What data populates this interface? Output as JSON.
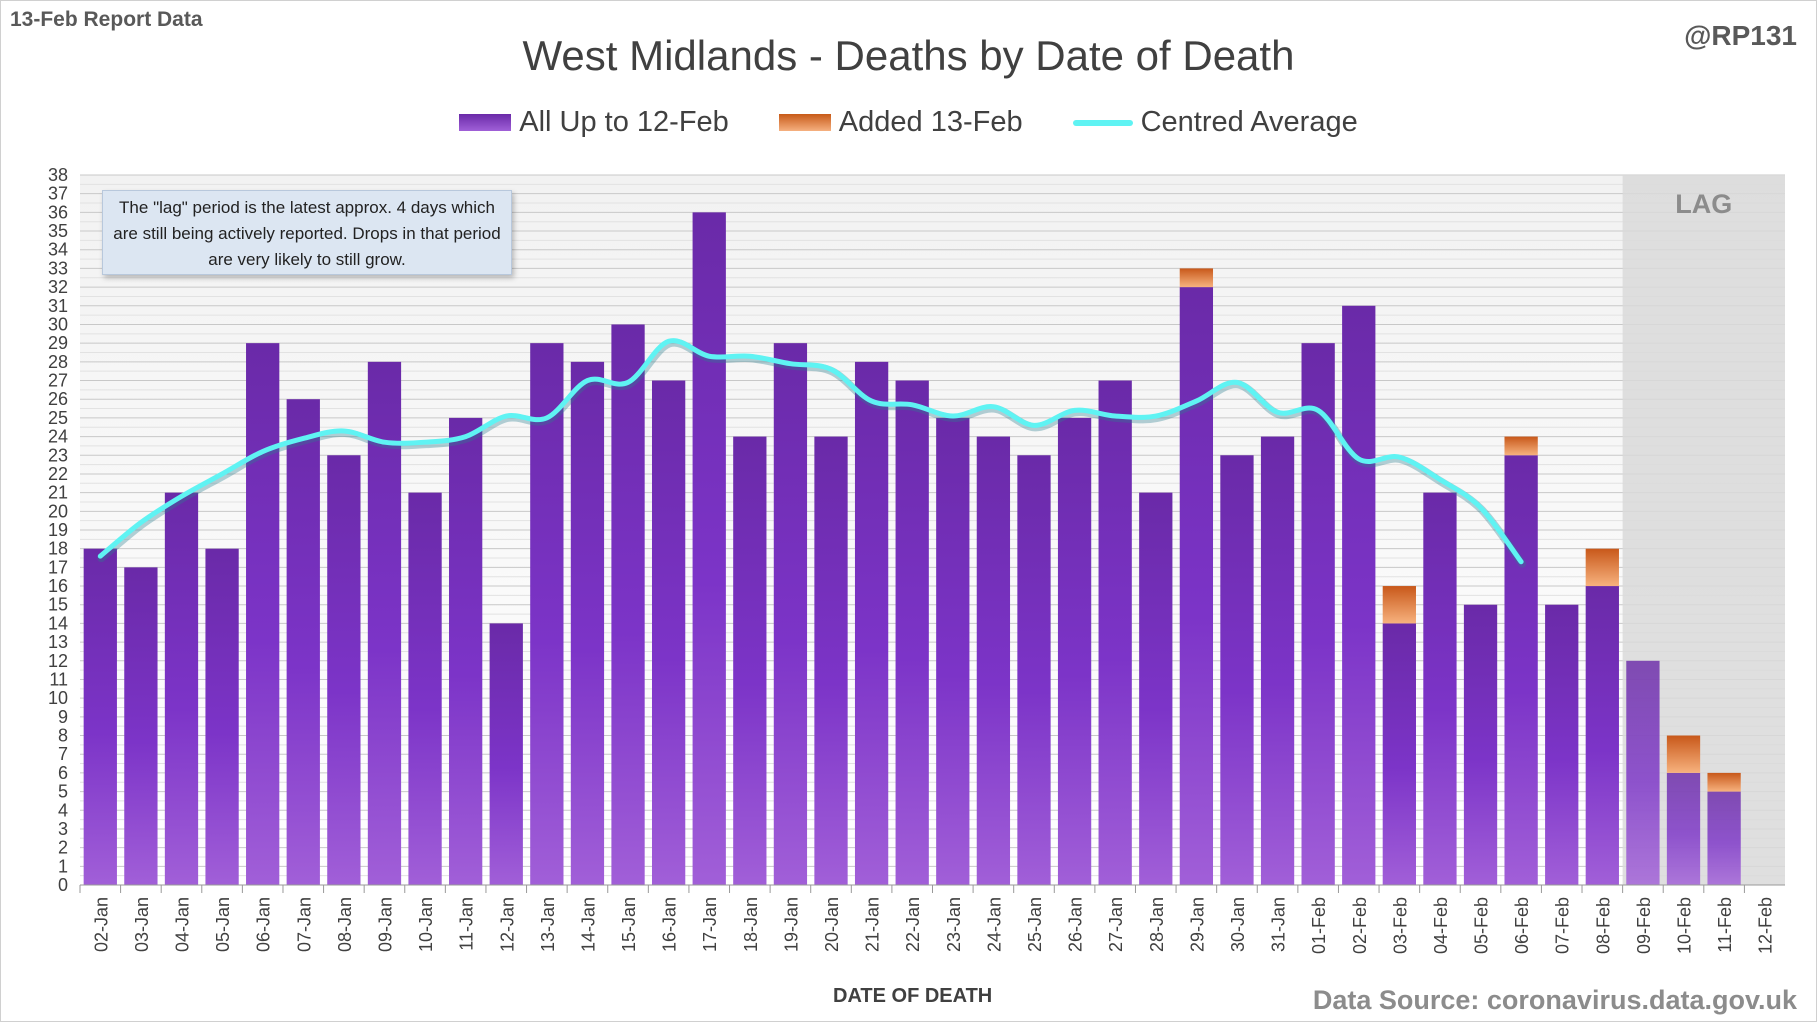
{
  "header": {
    "report_label": "13-Feb Report Data",
    "handle": "@RP131",
    "source": "Data Source: coronavirus.data.gov.uk"
  },
  "note": "The \"lag\" period is the latest approx. 4 days which are still being actively reported.  Drops in that period are very likely to still grow.",
  "colors": {
    "base": "#7a34c2",
    "added": "#e27a30",
    "average": "#5ff3f3",
    "lag_shade": "#d9d9d9"
  },
  "chart_data": {
    "type": "bar",
    "title": "West Midlands - Deaths by Date of Death",
    "xlabel": "DATE OF DEATH",
    "ylabel": "",
    "ylim": [
      0,
      38
    ],
    "yticks": [
      0,
      1,
      2,
      3,
      4,
      5,
      6,
      7,
      8,
      9,
      10,
      11,
      12,
      13,
      14,
      15,
      16,
      17,
      18,
      19,
      20,
      21,
      22,
      23,
      24,
      25,
      26,
      27,
      28,
      29,
      30,
      31,
      32,
      33,
      34,
      35,
      36,
      37,
      38
    ],
    "grid": true,
    "legend_position": "top",
    "stacked": true,
    "categories": [
      "02-Jan",
      "03-Jan",
      "04-Jan",
      "05-Jan",
      "06-Jan",
      "07-Jan",
      "08-Jan",
      "09-Jan",
      "10-Jan",
      "11-Jan",
      "12-Jan",
      "13-Jan",
      "14-Jan",
      "15-Jan",
      "16-Jan",
      "17-Jan",
      "18-Jan",
      "19-Jan",
      "20-Jan",
      "21-Jan",
      "22-Jan",
      "23-Jan",
      "24-Jan",
      "25-Jan",
      "26-Jan",
      "27-Jan",
      "28-Jan",
      "29-Jan",
      "30-Jan",
      "31-Jan",
      "01-Feb",
      "02-Feb",
      "03-Feb",
      "04-Feb",
      "05-Feb",
      "06-Feb",
      "07-Feb",
      "08-Feb",
      "09-Feb",
      "10-Feb",
      "11-Feb",
      "12-Feb"
    ],
    "series": [
      {
        "name": "All Up to 12-Feb",
        "kind": "bar",
        "values": [
          18,
          17,
          21,
          18,
          29,
          26,
          23,
          28,
          21,
          25,
          14,
          29,
          28,
          30,
          27,
          36,
          24,
          29,
          24,
          28,
          27,
          25,
          24,
          23,
          25,
          27,
          21,
          32,
          23,
          24,
          29,
          31,
          14,
          21,
          15,
          23,
          15,
          16,
          12,
          6,
          5,
          0
        ]
      },
      {
        "name": "Added 13-Feb",
        "kind": "bar",
        "values": [
          0,
          0,
          0,
          0,
          0,
          0,
          0,
          0,
          0,
          0,
          0,
          0,
          0,
          0,
          0,
          0,
          0,
          0,
          0,
          0,
          0,
          0,
          0,
          0,
          0,
          0,
          0,
          1,
          0,
          0,
          0,
          0,
          2,
          0,
          0,
          1,
          0,
          2,
          0,
          2,
          1,
          0
        ]
      },
      {
        "name": "Centred Average",
        "kind": "line",
        "values": [
          17.6,
          19.4,
          20.8,
          22.0,
          23.2,
          23.9,
          24.3,
          23.7,
          23.7,
          24.0,
          25.1,
          25.0,
          27.0,
          26.9,
          29.1,
          28.3,
          28.3,
          27.9,
          27.6,
          25.9,
          25.7,
          25.1,
          25.6,
          24.6,
          25.4,
          25.1,
          25.1,
          25.9,
          26.9,
          25.3,
          25.4,
          22.8,
          22.9,
          21.7,
          20.2,
          17.3,
          null,
          null,
          null,
          null,
          null,
          null
        ]
      }
    ],
    "lag_region": {
      "label": "LAG",
      "from": "09-Feb",
      "to": "12-Feb"
    }
  }
}
